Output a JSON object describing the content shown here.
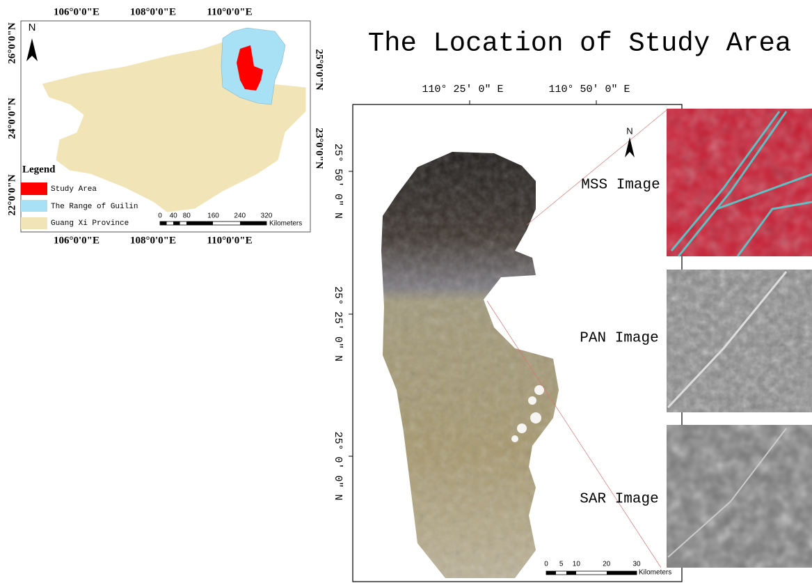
{
  "title": "The Location of Study Area",
  "inset_map": {
    "lon_labels_top": [
      "106°0'0\"E",
      "108°0'0\"E",
      "110°0'0\"E"
    ],
    "lon_labels_bottom": [
      "106°0'0\"E",
      "108°0'0\"E",
      "110°0'0\"E"
    ],
    "lat_labels_left": [
      "26°0'0\"N",
      "24°0'0\"N",
      "22°0'0\"N"
    ],
    "lat_labels_right": [
      "25°0'0\"N",
      "23°0'0\"N"
    ],
    "north": "N",
    "legend": {
      "title": "Legend",
      "items": [
        "Study Area",
        "The Range of Guilin",
        "Guang Xi Province"
      ]
    },
    "scale": {
      "ticks": [
        0,
        40,
        80,
        160,
        240,
        320
      ],
      "unit": "Kilometers"
    }
  },
  "main_map": {
    "lon_labels": [
      "110° 25′ 0″ E",
      "110° 50′ 0″ E"
    ],
    "lat_labels": [
      "25° 50′ 0″ N",
      "25° 25′ 0″ N",
      "25° 0′ 0″ N"
    ],
    "north": "N",
    "scale": {
      "ticks": [
        0,
        5,
        10,
        20,
        30
      ],
      "unit": "Kilometers"
    }
  },
  "images": [
    "MSS Image",
    "PAN Image",
    "SAR Image"
  ]
}
